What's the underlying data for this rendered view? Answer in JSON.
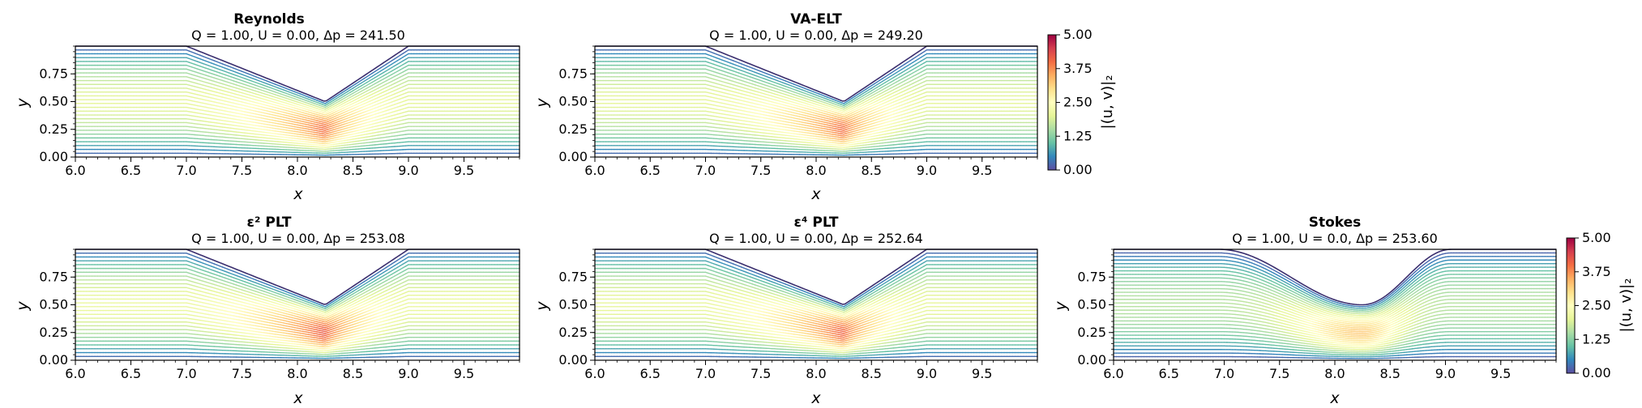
{
  "figure": {
    "colorbar": {
      "label": "|(u, v)|₂",
      "ticks": [
        "0.00",
        "1.25",
        "2.50",
        "3.75",
        "5.00"
      ],
      "range": [
        0,
        5
      ],
      "colormap": [
        "#5e4fa2",
        "#3288bd",
        "#66c2a5",
        "#abdda4",
        "#e6f598",
        "#ffffbf",
        "#fee08b",
        "#fdae61",
        "#f46d43",
        "#d53e4f",
        "#9e0142"
      ]
    }
  },
  "chart_data": [
    {
      "type": "line",
      "title": "Reynolds",
      "subtitle": "Q = 1.00, U = 0.00, Δp = 241.50",
      "xlabel": "x",
      "ylabel": "y",
      "xlim": [
        6.0,
        10.0
      ],
      "ylim": [
        0.0,
        1.0
      ],
      "xticks": [
        "6.0",
        "6.5",
        "7.0",
        "7.5",
        "8.0",
        "8.5",
        "9.0",
        "9.5"
      ],
      "yticks": [
        "0.00",
        "0.25",
        "0.50",
        "0.75"
      ],
      "geometry": {
        "inlet_end": 7.0,
        "throat_x": 8.25,
        "throat_height": 0.5,
        "outlet_start": 9.0,
        "channel_height": 1.0
      },
      "streamline_count": 28,
      "max_speed": 4.0,
      "smooth_corners": false
    },
    {
      "type": "line",
      "title": "VA-ELT",
      "subtitle": "Q = 1.00, U = 0.00, Δp = 249.20",
      "xlabel": "x",
      "ylabel": "y",
      "xlim": [
        6.0,
        10.0
      ],
      "ylim": [
        0.0,
        1.0
      ],
      "xticks": [
        "6.0",
        "6.5",
        "7.0",
        "7.5",
        "8.0",
        "8.5",
        "9.0",
        "9.5"
      ],
      "yticks": [
        "0.00",
        "0.25",
        "0.50",
        "0.75"
      ],
      "geometry": {
        "inlet_end": 7.0,
        "throat_x": 8.25,
        "throat_height": 0.5,
        "outlet_start": 9.0,
        "channel_height": 1.0
      },
      "streamline_count": 28,
      "max_speed": 4.0,
      "smooth_corners": false
    },
    {
      "type": "line",
      "title": "ε² PLT",
      "subtitle": "Q = 1.00, U = 0.00, Δp = 253.08",
      "xlabel": "x",
      "ylabel": "y",
      "xlim": [
        6.0,
        10.0
      ],
      "ylim": [
        0.0,
        1.0
      ],
      "xticks": [
        "6.0",
        "6.5",
        "7.0",
        "7.5",
        "8.0",
        "8.5",
        "9.0",
        "9.5"
      ],
      "yticks": [
        "0.00",
        "0.25",
        "0.50",
        "0.75"
      ],
      "geometry": {
        "inlet_end": 7.0,
        "throat_x": 8.25,
        "throat_height": 0.5,
        "outlet_start": 9.0,
        "channel_height": 1.0
      },
      "streamline_count": 28,
      "max_speed": 4.2,
      "smooth_corners": false
    },
    {
      "type": "line",
      "title": "ε⁴ PLT",
      "subtitle": "Q = 1.00, U = 0.00, Δp = 252.64",
      "xlabel": "x",
      "ylabel": "y",
      "xlim": [
        6.0,
        10.0
      ],
      "ylim": [
        0.0,
        1.0
      ],
      "xticks": [
        "6.0",
        "6.5",
        "7.0",
        "7.5",
        "8.0",
        "8.5",
        "9.0",
        "9.5"
      ],
      "yticks": [
        "0.00",
        "0.25",
        "0.50",
        "0.75"
      ],
      "geometry": {
        "inlet_end": 7.0,
        "throat_x": 8.25,
        "throat_height": 0.5,
        "outlet_start": 9.0,
        "channel_height": 1.0
      },
      "streamline_count": 28,
      "max_speed": 4.1,
      "smooth_corners": false
    },
    {
      "type": "line",
      "title": "Stokes",
      "subtitle": "Q = 1.00, U = 0.0, Δp = 253.60",
      "xlabel": "x",
      "ylabel": "y",
      "xlim": [
        6.0,
        10.0
      ],
      "ylim": [
        0.0,
        1.0
      ],
      "xticks": [
        "6.0",
        "6.5",
        "7.0",
        "7.5",
        "8.0",
        "8.5",
        "9.0",
        "9.5"
      ],
      "yticks": [
        "0.00",
        "0.25",
        "0.50",
        "0.75"
      ],
      "geometry": {
        "inlet_end": 7.0,
        "throat_x": 8.25,
        "throat_height": 0.5,
        "outlet_start": 9.0,
        "channel_height": 1.0
      },
      "streamline_count": 30,
      "max_speed": 3.2,
      "smooth_corners": true
    }
  ]
}
